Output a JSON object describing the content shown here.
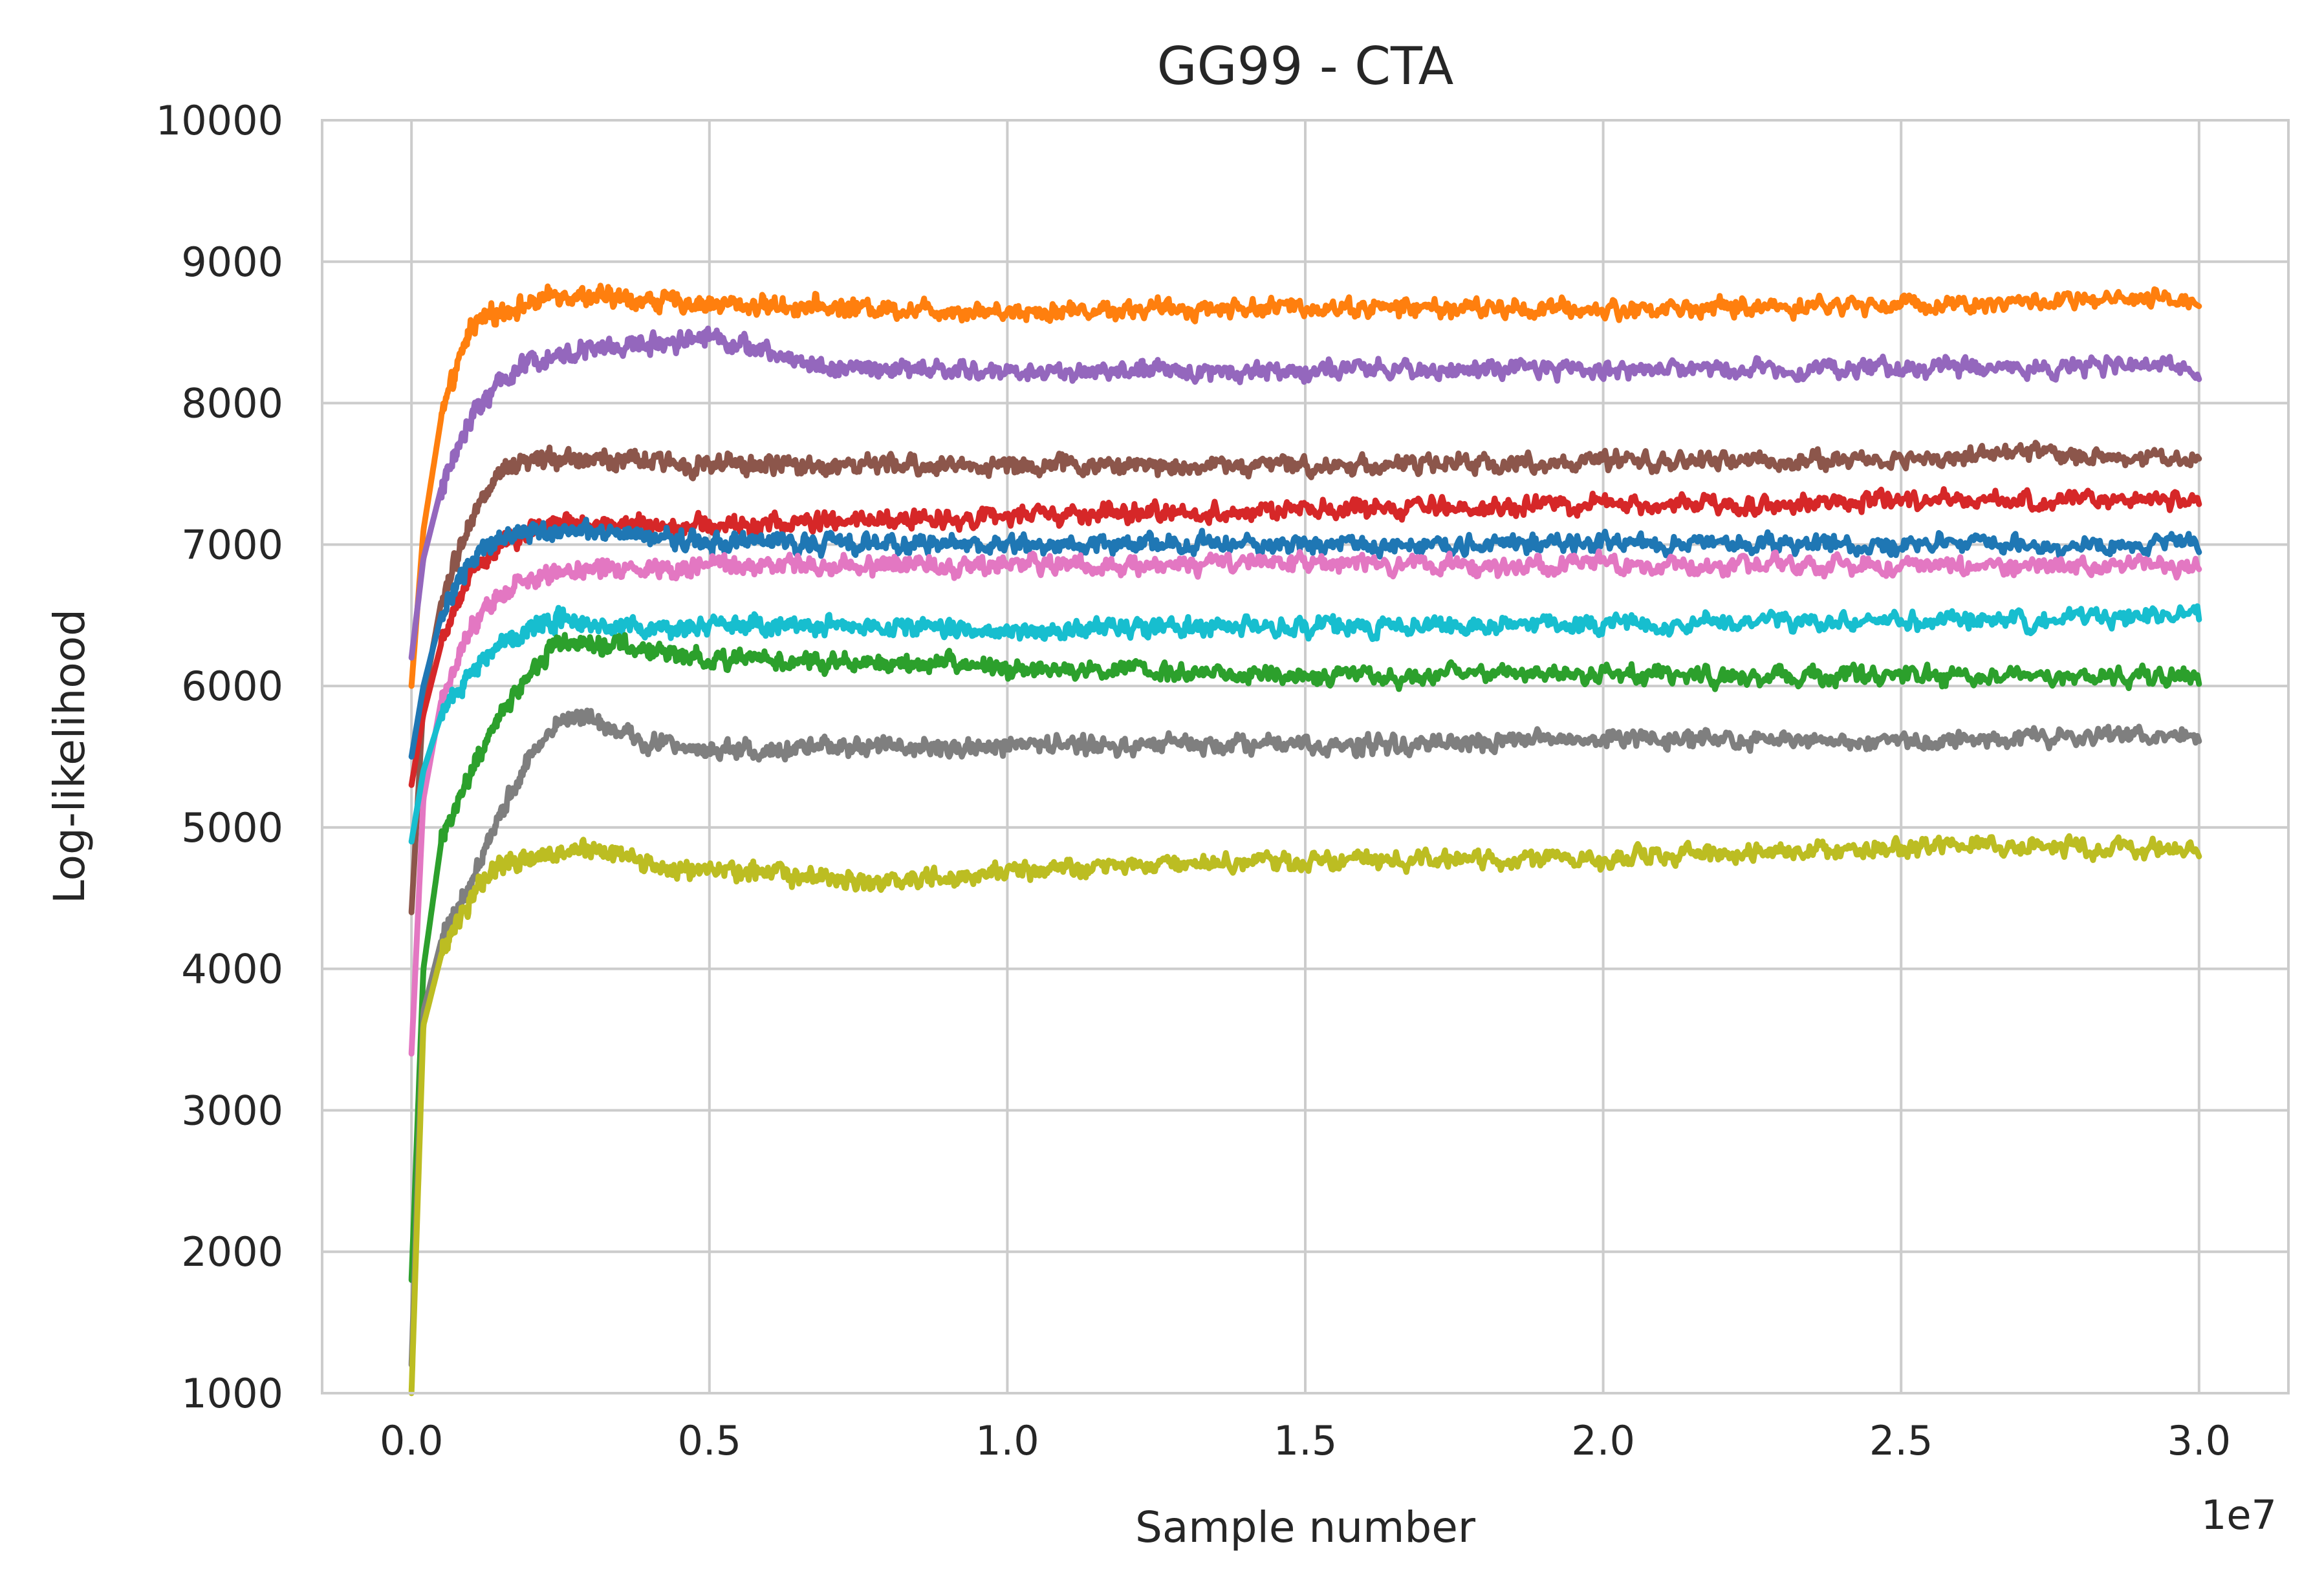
{
  "chart_data": {
    "type": "line",
    "title": "GG99 - CTA",
    "xlabel": "Sample number",
    "ylabel": "Log-likelihood",
    "x_offset_text": "1e7",
    "xlim": [
      -0.15,
      3.15
    ],
    "ylim": [
      1000,
      10000
    ],
    "x_ticks": [
      0.0,
      0.5,
      1.0,
      1.5,
      2.0,
      2.5,
      3.0
    ],
    "x_tick_labels": [
      "0.0",
      "0.5",
      "1.0",
      "1.5",
      "2.0",
      "2.5",
      "3.0"
    ],
    "y_ticks": [
      1000,
      2000,
      3000,
      4000,
      5000,
      6000,
      7000,
      8000,
      9000,
      10000
    ],
    "y_tick_labels": [
      "1000",
      "2000",
      "3000",
      "4000",
      "5000",
      "6000",
      "7000",
      "8000",
      "9000",
      "10000"
    ],
    "grid": true,
    "x_unit_scale": "1e7",
    "series": [
      {
        "color": "#ff7f0e",
        "x": [
          0,
          0.02,
          0.05,
          0.1,
          0.15,
          0.2,
          0.25,
          0.3,
          0.5,
          1.0,
          1.5,
          2.0,
          2.5,
          3.0
        ],
        "values": [
          6000,
          7100,
          7900,
          8550,
          8650,
          8700,
          8780,
          8750,
          8700,
          8650,
          8680,
          8660,
          8700,
          8730
        ]
      },
      {
        "color": "#9467bd",
        "x": [
          0,
          0.02,
          0.05,
          0.1,
          0.15,
          0.2,
          0.3,
          0.4,
          0.5,
          0.6,
          0.7,
          1.0,
          1.5,
          2.0,
          2.5,
          3.0
        ],
        "values": [
          6200,
          6900,
          7400,
          7900,
          8150,
          8300,
          8380,
          8420,
          8480,
          8350,
          8250,
          8220,
          8230,
          8240,
          8250,
          8260
        ]
      },
      {
        "color": "#8c564b",
        "x": [
          0,
          0.02,
          0.05,
          0.1,
          0.15,
          0.2,
          0.25,
          0.5,
          1.0,
          1.5,
          2.0,
          2.5,
          2.7,
          3.0
        ],
        "values": [
          4400,
          5900,
          6600,
          7200,
          7500,
          7580,
          7620,
          7560,
          7560,
          7560,
          7580,
          7600,
          7650,
          7600
        ]
      },
      {
        "color": "#d62728",
        "x": [
          0,
          0.02,
          0.05,
          0.1,
          0.15,
          0.2,
          0.25,
          0.5,
          1.0,
          1.5,
          2.0,
          2.5,
          3.0
        ],
        "values": [
          5300,
          5800,
          6300,
          6800,
          7000,
          7100,
          7150,
          7130,
          7200,
          7240,
          7280,
          7300,
          7320
        ]
      },
      {
        "color": "#1f77b4",
        "x": [
          0,
          0.02,
          0.05,
          0.1,
          0.15,
          0.2,
          0.25,
          0.5,
          1.0,
          1.5,
          2.0,
          2.5,
          3.0
        ],
        "values": [
          5500,
          6000,
          6500,
          6900,
          7050,
          7100,
          7100,
          7020,
          7000,
          7000,
          7010,
          7000,
          7010
        ]
      },
      {
        "color": "#e377c2",
        "x": [
          0,
          0.02,
          0.05,
          0.1,
          0.15,
          0.2,
          0.25,
          0.5,
          1.0,
          1.5,
          2.0,
          2.5,
          3.0
        ],
        "values": [
          3400,
          5200,
          5900,
          6400,
          6650,
          6750,
          6820,
          6850,
          6860,
          6860,
          6850,
          6850,
          6850
        ]
      },
      {
        "color": "#17becf",
        "x": [
          0,
          0.02,
          0.05,
          0.1,
          0.15,
          0.2,
          0.25,
          0.4,
          0.5,
          1.0,
          1.5,
          2.0,
          2.5,
          3.0
        ],
        "values": [
          4900,
          5400,
          5800,
          6100,
          6300,
          6420,
          6480,
          6400,
          6420,
          6400,
          6420,
          6440,
          6460,
          6480
        ]
      },
      {
        "color": "#2ca02c",
        "x": [
          0,
          0.02,
          0.05,
          0.1,
          0.15,
          0.2,
          0.25,
          0.3,
          0.5,
          1.0,
          1.5,
          2.0,
          2.5,
          3.0
        ],
        "values": [
          1800,
          4000,
          4900,
          5400,
          5800,
          6100,
          6330,
          6300,
          6200,
          6130,
          6070,
          6080,
          6070,
          6070
        ]
      },
      {
        "color": "#7f7f7f",
        "x": [
          0,
          0.02,
          0.05,
          0.1,
          0.15,
          0.2,
          0.25,
          0.3,
          0.4,
          0.5,
          1.0,
          1.5,
          2.0,
          2.5,
          3.0
        ],
        "values": [
          1200,
          3700,
          4200,
          4600,
          5100,
          5500,
          5750,
          5780,
          5600,
          5550,
          5580,
          5580,
          5620,
          5600,
          5650
        ]
      },
      {
        "color": "#bcbd22",
        "x": [
          0,
          0.02,
          0.05,
          0.1,
          0.15,
          0.2,
          0.25,
          0.3,
          0.4,
          0.5,
          0.8,
          1.0,
          1.5,
          2.0,
          2.5,
          2.6,
          3.0
        ],
        "values": [
          1000,
          3600,
          4100,
          4500,
          4750,
          4790,
          4800,
          4850,
          4720,
          4700,
          4620,
          4700,
          4760,
          4780,
          4860,
          4880,
          4850
        ]
      }
    ]
  }
}
